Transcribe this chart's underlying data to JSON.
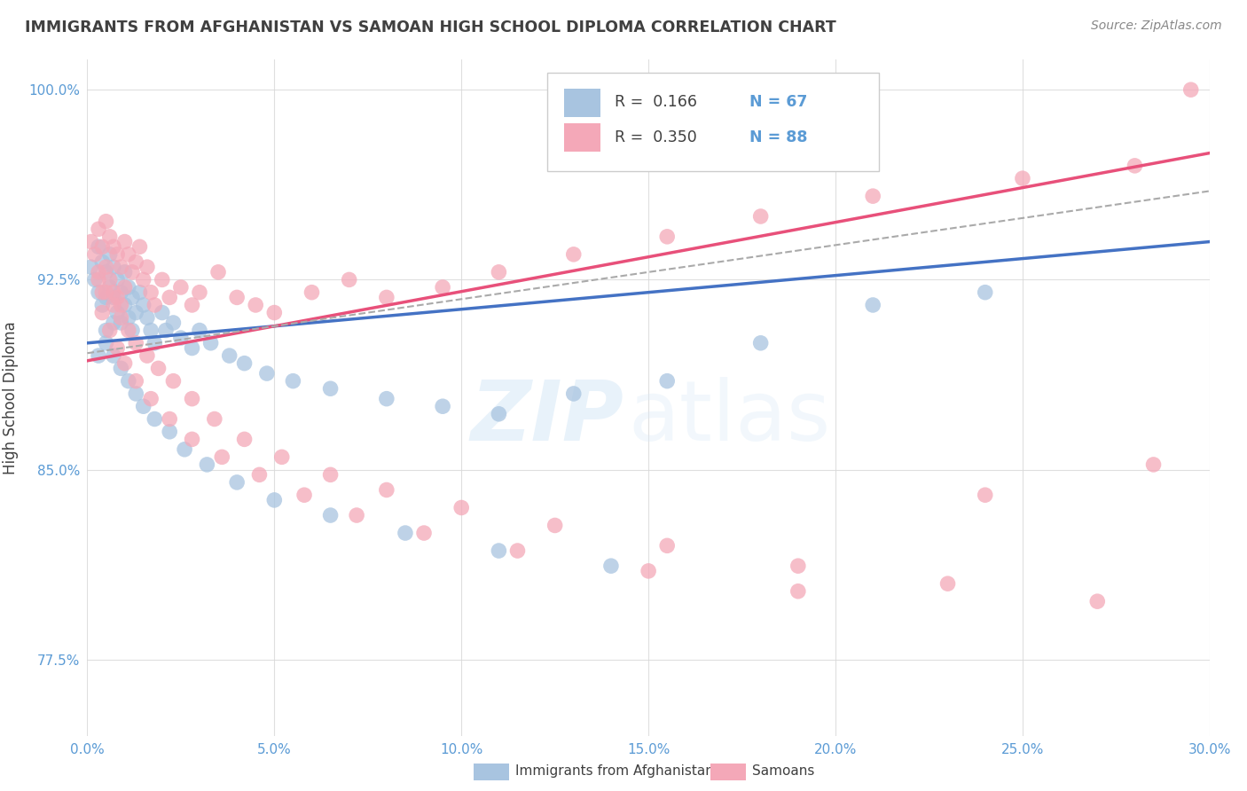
{
  "title": "IMMIGRANTS FROM AFGHANISTAN VS SAMOAN HIGH SCHOOL DIPLOMA CORRELATION CHART",
  "source": "Source: ZipAtlas.com",
  "ylabel": "High School Diploma",
  "legend_blue_label": "Immigrants from Afghanistan",
  "legend_pink_label": "Samoans",
  "blue_color": "#a8c4e0",
  "pink_color": "#f4a8b8",
  "blue_line_color": "#4472c4",
  "pink_line_color": "#e8507a",
  "axis_color": "#5b9bd5",
  "title_color": "#404040",
  "xmin": 0.0,
  "xmax": 0.3,
  "ymin": 0.745,
  "ymax": 1.012,
  "blue_scatter_x": [
    0.001,
    0.002,
    0.003,
    0.003,
    0.004,
    0.004,
    0.005,
    0.005,
    0.005,
    0.006,
    0.006,
    0.007,
    0.007,
    0.007,
    0.008,
    0.008,
    0.009,
    0.009,
    0.01,
    0.01,
    0.011,
    0.011,
    0.012,
    0.012,
    0.013,
    0.014,
    0.015,
    0.016,
    0.017,
    0.018,
    0.02,
    0.021,
    0.023,
    0.025,
    0.028,
    0.03,
    0.033,
    0.038,
    0.042,
    0.048,
    0.055,
    0.065,
    0.08,
    0.095,
    0.11,
    0.13,
    0.155,
    0.18,
    0.21,
    0.24,
    0.003,
    0.005,
    0.007,
    0.009,
    0.011,
    0.013,
    0.015,
    0.018,
    0.022,
    0.026,
    0.032,
    0.04,
    0.05,
    0.065,
    0.085,
    0.11,
    0.14
  ],
  "blue_scatter_y": [
    0.93,
    0.925,
    0.938,
    0.92,
    0.932,
    0.915,
    0.928,
    0.918,
    0.905,
    0.935,
    0.922,
    0.93,
    0.918,
    0.908,
    0.925,
    0.912,
    0.92,
    0.908,
    0.928,
    0.915,
    0.922,
    0.91,
    0.918,
    0.905,
    0.912,
    0.92,
    0.915,
    0.91,
    0.905,
    0.9,
    0.912,
    0.905,
    0.908,
    0.902,
    0.898,
    0.905,
    0.9,
    0.895,
    0.892,
    0.888,
    0.885,
    0.882,
    0.878,
    0.875,
    0.872,
    0.88,
    0.885,
    0.9,
    0.915,
    0.92,
    0.895,
    0.9,
    0.895,
    0.89,
    0.885,
    0.88,
    0.875,
    0.87,
    0.865,
    0.858,
    0.852,
    0.845,
    0.838,
    0.832,
    0.825,
    0.818,
    0.812
  ],
  "pink_scatter_x": [
    0.001,
    0.002,
    0.003,
    0.003,
    0.004,
    0.004,
    0.005,
    0.005,
    0.006,
    0.006,
    0.007,
    0.007,
    0.008,
    0.008,
    0.009,
    0.009,
    0.01,
    0.01,
    0.011,
    0.012,
    0.013,
    0.014,
    0.015,
    0.016,
    0.017,
    0.018,
    0.02,
    0.022,
    0.025,
    0.028,
    0.03,
    0.035,
    0.04,
    0.045,
    0.05,
    0.06,
    0.07,
    0.08,
    0.095,
    0.11,
    0.13,
    0.155,
    0.18,
    0.21,
    0.25,
    0.28,
    0.295,
    0.003,
    0.005,
    0.007,
    0.009,
    0.011,
    0.013,
    0.016,
    0.019,
    0.023,
    0.028,
    0.034,
    0.042,
    0.052,
    0.065,
    0.08,
    0.1,
    0.125,
    0.155,
    0.19,
    0.23,
    0.27,
    0.004,
    0.006,
    0.008,
    0.01,
    0.013,
    0.017,
    0.022,
    0.028,
    0.036,
    0.046,
    0.058,
    0.072,
    0.09,
    0.115,
    0.15,
    0.19,
    0.24,
    0.285
  ],
  "pink_scatter_y": [
    0.94,
    0.935,
    0.945,
    0.928,
    0.938,
    0.92,
    0.948,
    0.93,
    0.942,
    0.925,
    0.938,
    0.92,
    0.935,
    0.918,
    0.93,
    0.915,
    0.94,
    0.922,
    0.935,
    0.928,
    0.932,
    0.938,
    0.925,
    0.93,
    0.92,
    0.915,
    0.925,
    0.918,
    0.922,
    0.915,
    0.92,
    0.928,
    0.918,
    0.915,
    0.912,
    0.92,
    0.925,
    0.918,
    0.922,
    0.928,
    0.935,
    0.942,
    0.95,
    0.958,
    0.965,
    0.97,
    1.0,
    0.925,
    0.92,
    0.915,
    0.91,
    0.905,
    0.9,
    0.895,
    0.89,
    0.885,
    0.878,
    0.87,
    0.862,
    0.855,
    0.848,
    0.842,
    0.835,
    0.828,
    0.82,
    0.812,
    0.805,
    0.798,
    0.912,
    0.905,
    0.898,
    0.892,
    0.885,
    0.878,
    0.87,
    0.862,
    0.855,
    0.848,
    0.84,
    0.832,
    0.825,
    0.818,
    0.81,
    0.802,
    0.84,
    0.852
  ],
  "blue_line_x": [
    0.0,
    0.3
  ],
  "blue_line_y": [
    0.9,
    0.94
  ],
  "pink_line_x": [
    0.0,
    0.3
  ],
  "pink_line_y": [
    0.893,
    0.975
  ],
  "dashed_line_x": [
    0.0,
    0.3
  ],
  "dashed_line_y": [
    0.896,
    0.96
  ],
  "yticks": [
    0.775,
    0.85,
    0.925,
    1.0
  ],
  "ytick_labels": [
    "77.5%",
    "85.0%",
    "92.5%",
    "100.0%"
  ],
  "xticks": [
    0.0,
    0.05,
    0.1,
    0.15,
    0.2,
    0.25,
    0.3
  ],
  "xtick_labels": [
    "0.0%",
    "5.0%",
    "10.0%",
    "15.0%",
    "20.0%",
    "25.0%",
    "30.0%"
  ]
}
